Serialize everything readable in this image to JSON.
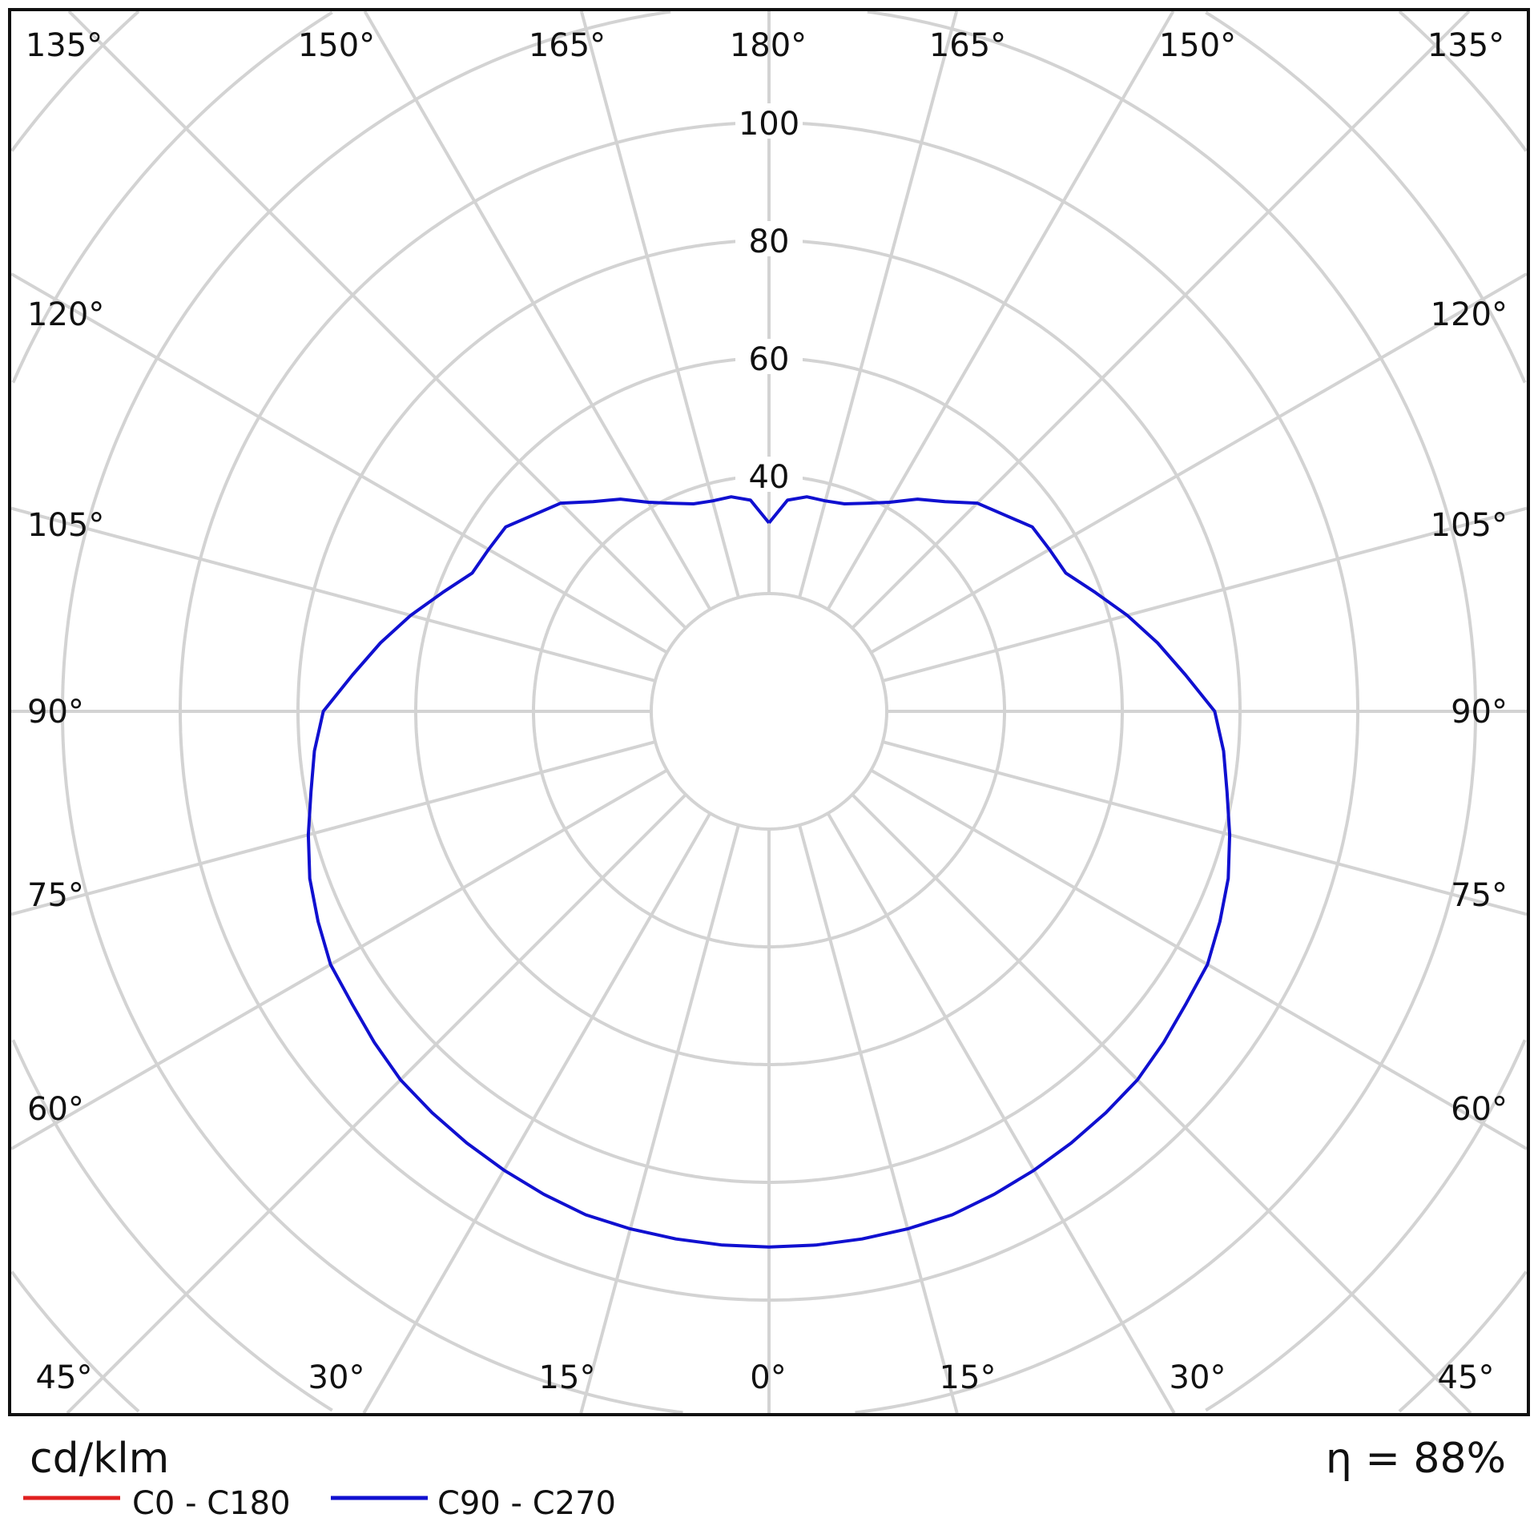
{
  "chart_data": {
    "type": "polar",
    "unit_label": "cd/klm",
    "efficiency_label": "η = 88%",
    "radial_ticks": [
      40,
      60,
      80,
      100
    ],
    "radial_rings": [
      20,
      40,
      60,
      80,
      100,
      120,
      140,
      160
    ],
    "angle_labels": {
      "top": [
        "135°",
        "150°",
        "165°",
        "180°",
        "165°",
        "150°",
        "135°"
      ],
      "left": [
        "120°",
        "105°",
        "90°",
        "75°",
        "60°"
      ],
      "right": [
        "120°",
        "105°",
        "90°",
        "75°",
        "60°"
      ],
      "bottom": [
        "45°",
        "30°",
        "15°",
        "0°",
        "15°",
        "30°",
        "45°"
      ]
    },
    "grid": true,
    "legend_position": "bottom-left",
    "series": [
      {
        "name": "C0 - C180",
        "color": "#e02020",
        "gamma": [],
        "values": []
      },
      {
        "name": "C90 - C270",
        "color": "#1010d0",
        "gamma": [
          0,
          5,
          10,
          15,
          20,
          25,
          30,
          35,
          40,
          45,
          50,
          55,
          60,
          65,
          70,
          75,
          80,
          85,
          90,
          95,
          100,
          105,
          110,
          115,
          120,
          125,
          130,
          135,
          140,
          145,
          150,
          155,
          160,
          165,
          170,
          175,
          180
        ],
        "values": [
          91,
          91,
          91,
          91,
          91,
          90.5,
          90,
          89.5,
          89,
          88.5,
          87.5,
          86.5,
          86,
          84.5,
          83,
          81,
          79,
          77.5,
          75.7,
          71,
          67,
          63,
          59,
          55.6,
          55,
          54.6,
          52,
          50,
          46.5,
          44,
          41,
          39,
          37.5,
          37,
          37,
          36,
          32
        ]
      }
    ]
  }
}
